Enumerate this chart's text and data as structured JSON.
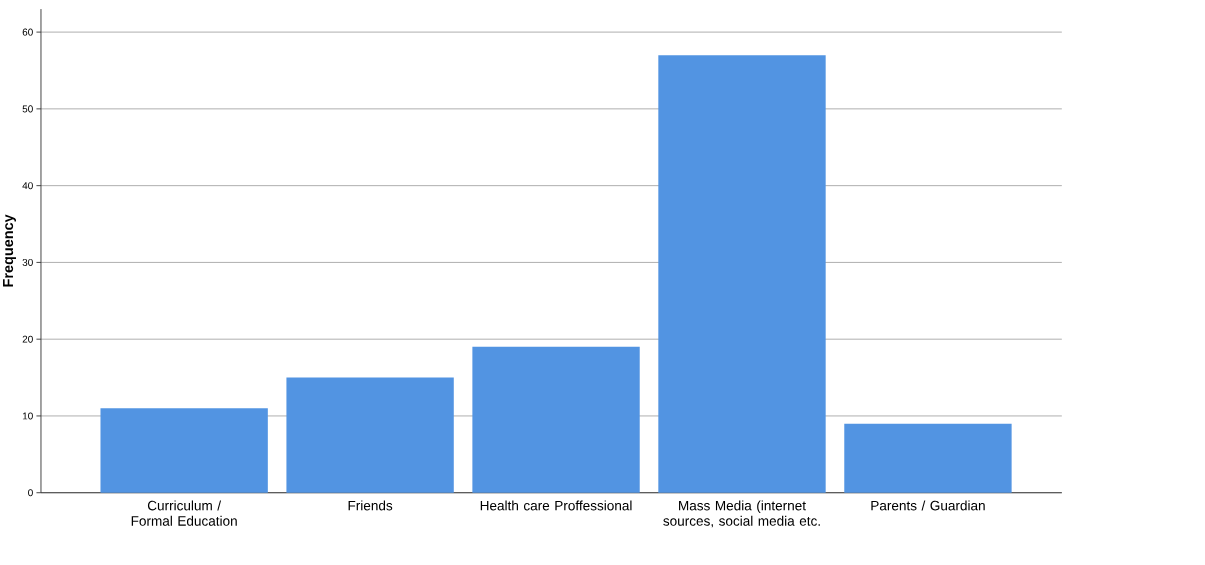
{
  "chart_data": {
    "type": "bar",
    "ylabel": "Frequency",
    "categories": [
      "Curriculum / Formal Education",
      "Friends",
      "Health care Proffessional",
      "Mass Media (internet sources, social media etc.",
      "Parents / Guardian"
    ],
    "values": [
      11,
      15,
      19,
      57,
      9
    ],
    "color": "#5294e2",
    "ylim": [
      0,
      63
    ],
    "yticks": [
      0,
      10,
      20,
      30,
      40,
      50,
      60
    ],
    "grid": "y"
  }
}
